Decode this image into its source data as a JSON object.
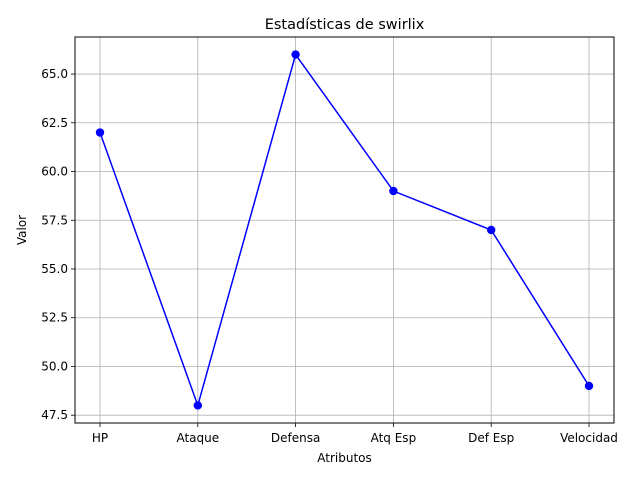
{
  "chart_data": {
    "type": "line",
    "title": "Estadísticas de swirlix",
    "xlabel": "Atributos",
    "ylabel": "Valor",
    "categories": [
      "HP",
      "Ataque",
      "Defensa",
      "Atq Esp",
      "Def Esp",
      "Velocidad"
    ],
    "series": [
      {
        "values": [
          62,
          48,
          66,
          59,
          57,
          49
        ],
        "color": "#0000ff",
        "marker": "circle"
      }
    ],
    "ylim": [
      47.1,
      66.9
    ],
    "yticks": [
      "47.5",
      "50.0",
      "52.5",
      "55.0",
      "57.5",
      "60.0",
      "62.5",
      "65.0"
    ],
    "grid": true,
    "legend": "none"
  }
}
